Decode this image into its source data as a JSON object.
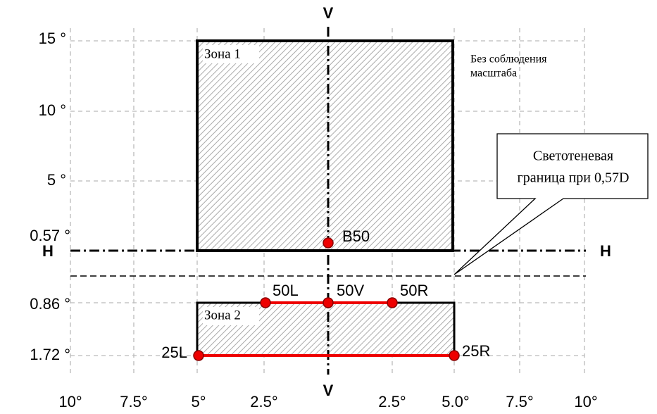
{
  "axes": {
    "v_top": "V",
    "v_bottom": "V",
    "h_left": "H",
    "h_right": "H"
  },
  "y_labels": [
    "15 °",
    "10 °",
    "5 °",
    "0.57 °",
    "0.86 °",
    "1.72 °"
  ],
  "x_labels": [
    "10°",
    "7.5°",
    "5°",
    "2.5°",
    "2.5°",
    "5.0°",
    "7.5°",
    "10°"
  ],
  "zones": [
    "Зона 1",
    "Зона 2"
  ],
  "points": [
    "B50",
    "50L",
    "50V",
    "50R",
    "25L",
    "25R"
  ],
  "note": [
    "Без соблюдения",
    "масштаба"
  ],
  "callout": [
    "Светотеневая",
    "граница при 0,57D"
  ]
}
